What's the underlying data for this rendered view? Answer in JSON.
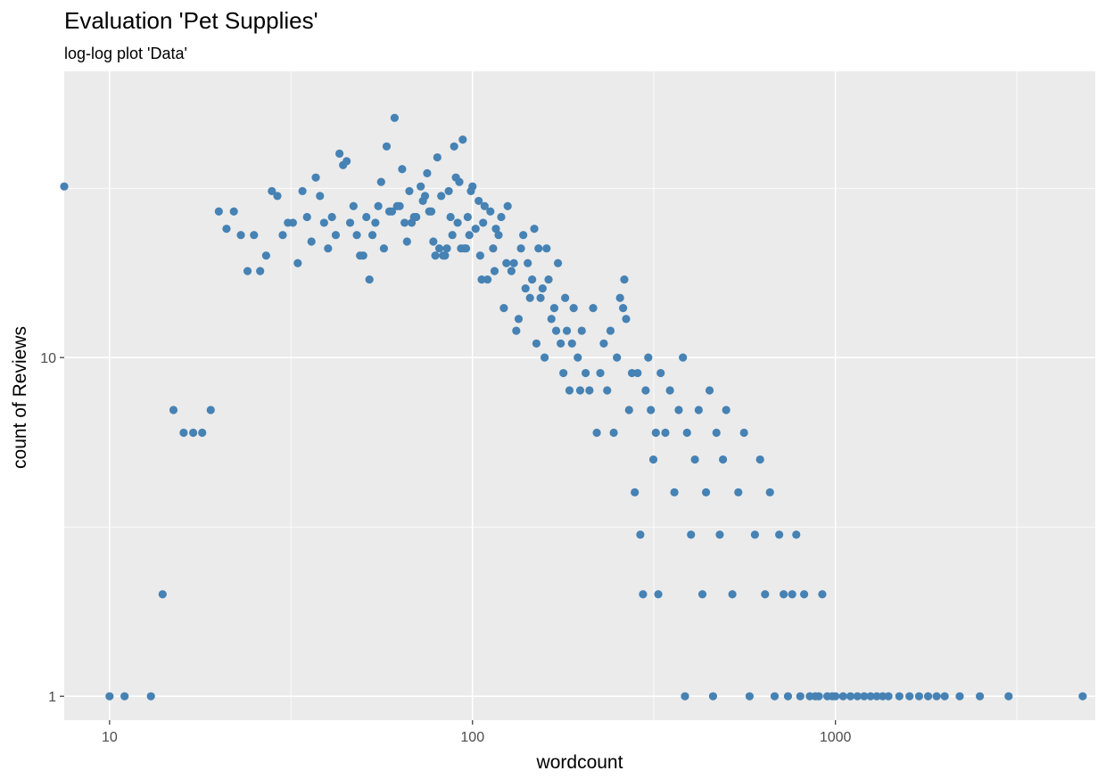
{
  "chart_data": {
    "type": "scatter",
    "title": "Evaluation 'Pet Supplies'",
    "subtitle": "log-log plot 'Data'",
    "xlabel": "wordcount",
    "ylabel": "count of Reviews",
    "x_scale": "log",
    "y_scale": "log",
    "xlim": [
      7.5,
      5200
    ],
    "ylim": [
      0.85,
      70
    ],
    "x_ticks": [
      {
        "value": 10,
        "label": "10"
      },
      {
        "value": 100,
        "label": "100"
      },
      {
        "value": 1000,
        "label": "1000"
      }
    ],
    "y_ticks": [
      {
        "value": 1,
        "label": "1"
      },
      {
        "value": 10,
        "label": "10"
      }
    ],
    "x_minor_ticks": [
      31.6,
      316,
      3162
    ],
    "y_minor_ticks": [
      3.16,
      31.6
    ],
    "grid": true,
    "legend": "none",
    "point_color": "#4682b4",
    "panel_color": "#ebebeb",
    "grid_color": "#ffffff",
    "series": [
      {
        "points": [
          [
            7.5,
            32
          ],
          [
            10,
            1
          ],
          [
            11,
            1
          ],
          [
            13,
            1
          ],
          [
            14,
            2
          ],
          [
            15,
            7
          ],
          [
            16,
            6
          ],
          [
            17,
            6
          ],
          [
            18,
            6
          ],
          [
            19,
            7
          ],
          [
            20,
            27
          ],
          [
            21,
            24
          ],
          [
            22,
            27
          ],
          [
            23,
            23
          ],
          [
            24,
            18
          ],
          [
            25,
            23
          ],
          [
            26,
            18
          ],
          [
            27,
            20
          ],
          [
            28,
            31
          ],
          [
            29,
            30
          ],
          [
            30,
            23
          ],
          [
            31,
            25
          ],
          [
            32,
            25
          ],
          [
            33,
            19
          ],
          [
            34,
            31
          ],
          [
            35,
            26
          ],
          [
            36,
            22
          ],
          [
            37,
            34
          ],
          [
            38,
            30
          ],
          [
            39,
            25
          ],
          [
            40,
            21
          ],
          [
            41,
            26
          ],
          [
            42,
            23
          ],
          [
            43,
            40
          ],
          [
            44,
            37
          ],
          [
            45,
            38
          ],
          [
            46,
            25
          ],
          [
            47,
            28
          ],
          [
            48,
            23
          ],
          [
            49,
            20
          ],
          [
            50,
            20
          ],
          [
            51,
            26
          ],
          [
            52,
            17
          ],
          [
            53,
            23
          ],
          [
            54,
            25
          ],
          [
            55,
            28
          ],
          [
            56,
            33
          ],
          [
            57,
            21
          ],
          [
            58,
            42
          ],
          [
            59,
            27
          ],
          [
            60,
            27
          ],
          [
            61,
            51
          ],
          [
            62,
            28
          ],
          [
            63,
            28
          ],
          [
            64,
            36
          ],
          [
            65,
            25
          ],
          [
            66,
            22
          ],
          [
            67,
            31
          ],
          [
            68,
            25
          ],
          [
            69,
            26
          ],
          [
            70,
            26
          ],
          [
            72,
            32
          ],
          [
            73,
            29
          ],
          [
            74,
            30
          ],
          [
            75,
            35
          ],
          [
            76,
            27
          ],
          [
            77,
            27
          ],
          [
            78,
            22
          ],
          [
            79,
            20
          ],
          [
            80,
            39
          ],
          [
            81,
            21
          ],
          [
            82,
            30
          ],
          [
            83,
            20
          ],
          [
            84,
            20
          ],
          [
            85,
            21
          ],
          [
            86,
            31
          ],
          [
            87,
            26
          ],
          [
            88,
            23
          ],
          [
            89,
            42
          ],
          [
            90,
            34
          ],
          [
            91,
            25
          ],
          [
            92,
            33
          ],
          [
            93,
            21
          ],
          [
            94,
            44
          ],
          [
            95,
            21
          ],
          [
            96,
            21
          ],
          [
            97,
            26
          ],
          [
            98,
            23
          ],
          [
            99,
            31
          ],
          [
            100,
            32
          ],
          [
            102,
            24
          ],
          [
            104,
            29
          ],
          [
            105,
            20
          ],
          [
            106,
            17
          ],
          [
            107,
            25
          ],
          [
            108,
            28
          ],
          [
            110,
            17
          ],
          [
            112,
            27
          ],
          [
            114,
            21
          ],
          [
            115,
            18
          ],
          [
            116,
            24
          ],
          [
            118,
            23
          ],
          [
            120,
            26
          ],
          [
            122,
            14
          ],
          [
            124,
            19
          ],
          [
            125,
            28
          ],
          [
            128,
            18
          ],
          [
            130,
            19
          ],
          [
            132,
            12
          ],
          [
            134,
            13
          ],
          [
            136,
            21
          ],
          [
            138,
            23
          ],
          [
            140,
            16
          ],
          [
            142,
            19
          ],
          [
            144,
            15
          ],
          [
            146,
            17
          ],
          [
            148,
            24
          ],
          [
            150,
            11
          ],
          [
            152,
            21
          ],
          [
            154,
            15
          ],
          [
            156,
            16
          ],
          [
            158,
            10
          ],
          [
            160,
            21
          ],
          [
            162,
            17
          ],
          [
            165,
            13
          ],
          [
            168,
            14
          ],
          [
            170,
            12
          ],
          [
            172,
            19
          ],
          [
            175,
            11
          ],
          [
            178,
            9
          ],
          [
            180,
            15
          ],
          [
            182,
            12
          ],
          [
            185,
            8
          ],
          [
            188,
            11
          ],
          [
            190,
            14
          ],
          [
            195,
            10
          ],
          [
            198,
            8
          ],
          [
            200,
            12
          ],
          [
            205,
            9
          ],
          [
            210,
            8
          ],
          [
            215,
            14
          ],
          [
            220,
            6
          ],
          [
            225,
            9
          ],
          [
            230,
            11
          ],
          [
            235,
            8
          ],
          [
            240,
            12
          ],
          [
            245,
            6
          ],
          [
            250,
            10
          ],
          [
            255,
            15
          ],
          [
            260,
            14
          ],
          [
            262,
            17
          ],
          [
            265,
            13
          ],
          [
            270,
            7
          ],
          [
            275,
            9
          ],
          [
            280,
            4
          ],
          [
            285,
            9
          ],
          [
            290,
            3
          ],
          [
            295,
            2
          ],
          [
            300,
            8
          ],
          [
            305,
            10
          ],
          [
            310,
            7
          ],
          [
            315,
            5
          ],
          [
            320,
            6
          ],
          [
            325,
            2
          ],
          [
            330,
            9
          ],
          [
            340,
            6
          ],
          [
            350,
            8
          ],
          [
            360,
            4
          ],
          [
            370,
            7
          ],
          [
            380,
            10
          ],
          [
            385,
            1
          ],
          [
            390,
            6
          ],
          [
            400,
            3
          ],
          [
            410,
            5
          ],
          [
            420,
            7
          ],
          [
            430,
            2
          ],
          [
            440,
            4
          ],
          [
            450,
            8
          ],
          [
            460,
            1
          ],
          [
            470,
            6
          ],
          [
            480,
            3
          ],
          [
            490,
            5
          ],
          [
            500,
            7
          ],
          [
            520,
            2
          ],
          [
            540,
            4
          ],
          [
            560,
            6
          ],
          [
            580,
            1
          ],
          [
            600,
            3
          ],
          [
            620,
            5
          ],
          [
            640,
            2
          ],
          [
            660,
            4
          ],
          [
            680,
            1
          ],
          [
            700,
            3
          ],
          [
            720,
            2
          ],
          [
            740,
            1
          ],
          [
            760,
            2
          ],
          [
            780,
            3
          ],
          [
            800,
            1
          ],
          [
            820,
            2
          ],
          [
            850,
            1
          ],
          [
            880,
            1
          ],
          [
            900,
            1
          ],
          [
            920,
            2
          ],
          [
            950,
            1
          ],
          [
            980,
            1
          ],
          [
            1000,
            1
          ],
          [
            1050,
            1
          ],
          [
            1100,
            1
          ],
          [
            1150,
            1
          ],
          [
            1200,
            1
          ],
          [
            1250,
            1
          ],
          [
            1300,
            1
          ],
          [
            1350,
            1
          ],
          [
            1400,
            1
          ],
          [
            1500,
            1
          ],
          [
            1600,
            1
          ],
          [
            1700,
            1
          ],
          [
            1800,
            1
          ],
          [
            1900,
            1
          ],
          [
            2000,
            1
          ],
          [
            2200,
            1
          ],
          [
            2500,
            1
          ],
          [
            3000,
            1
          ],
          [
            4800,
            1
          ]
        ]
      }
    ]
  }
}
